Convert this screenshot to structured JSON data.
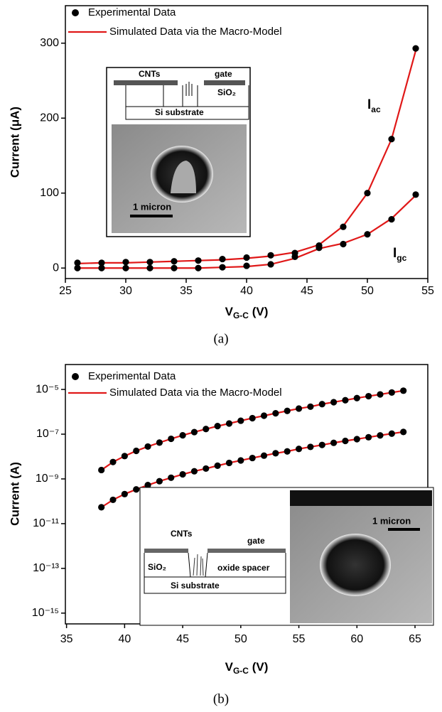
{
  "chart_data": [
    {
      "type": "scatter",
      "caption": "(a)",
      "y_label": "Current (μA)",
      "x_label": {
        "text": "V",
        "sub": "G-C",
        "unit": " (V)"
      },
      "x": [
        26,
        28,
        30,
        32,
        34,
        36,
        38,
        40,
        42,
        44,
        46,
        48,
        50,
        52,
        54
      ],
      "series": [
        {
          "name": "Experimental Data",
          "style": "markers",
          "color": "#000000",
          "values": [
            7,
            7,
            8,
            8,
            9,
            10,
            12,
            14,
            17,
            20,
            30,
            55,
            100,
            172,
            293
          ]
        },
        {
          "name": "Simulated Data via the Macro-Model",
          "style": "line",
          "color": "#e01818",
          "values": [
            6,
            7,
            7,
            8,
            9,
            10,
            11,
            13,
            16,
            21,
            31,
            56,
            100,
            172,
            290
          ]
        },
        {
          "style": "markers",
          "color": "#000000",
          "values": [
            0,
            0,
            0,
            0,
            0,
            0,
            1,
            3,
            5,
            15,
            27,
            32,
            45,
            65,
            98
          ]
        },
        {
          "style": "line",
          "color": "#e01818",
          "values": [
            0,
            0,
            0,
            0,
            0,
            0,
            1,
            2,
            5,
            13,
            26,
            33,
            45,
            66,
            97
          ]
        }
      ],
      "curve_labels": [
        {
          "text": "I",
          "sub": "ac"
        },
        {
          "text": "I",
          "sub": "gc"
        }
      ],
      "xlim": [
        25,
        55
      ],
      "xticks": [
        25,
        30,
        35,
        40,
        45,
        50,
        55
      ],
      "ylim": [
        -14,
        350
      ],
      "yticks": [
        0,
        100,
        200,
        300
      ],
      "legend": "upper left",
      "inset": {
        "cnts": "CNTs",
        "gate": "gate",
        "oxide": "SiO₂",
        "substrate": "Si substrate",
        "scale_bar": "1 micron"
      }
    },
    {
      "type": "scatter",
      "caption": "(b)",
      "y_label": "Current (A)",
      "x_label": {
        "text": "V",
        "sub": "G-C",
        "unit": " (V)"
      },
      "x": [
        38,
        39,
        40,
        41,
        42,
        43,
        44,
        45,
        46,
        47,
        48,
        49,
        50,
        51,
        52,
        53,
        54,
        55,
        56,
        57,
        58,
        59,
        60,
        61,
        62,
        63,
        64
      ],
      "series": [
        {
          "name": "Experimental Data",
          "style": "markers",
          "color": "#000000",
          "values": [
            2.5e-09,
            5.7e-09,
            1.05e-08,
            1.8e-08,
            2.8e-08,
            4.2e-08,
            6.2e-08,
            8.9e-08,
            1.24e-07,
            1.7e-07,
            2.3e-07,
            3e-07,
            4e-07,
            5.2e-07,
            6.7e-07,
            8.6e-07,
            1.1e-06,
            1.4e-06,
            1.7e-06,
            2.2e-06,
            2.7e-06,
            3.3e-06,
            4.1e-06,
            5e-06,
            6e-06,
            7.3e-06,
            8.8e-06
          ]
        },
        {
          "name": "Simulated Data via the Macro-Model",
          "style": "line",
          "color": "#e01818",
          "values": [
            2.5e-09,
            5.7e-09,
            1.05e-08,
            1.8e-08,
            2.8e-08,
            4.2e-08,
            6.2e-08,
            8.9e-08,
            1.24e-07,
            1.7e-07,
            2.3e-07,
            3e-07,
            4e-07,
            5.2e-07,
            6.7e-07,
            8.6e-07,
            1.1e-06,
            1.4e-06,
            1.7e-06,
            2.2e-06,
            2.7e-06,
            3.3e-06,
            4.1e-06,
            5e-06,
            6e-06,
            7.3e-06,
            8.8e-06
          ]
        },
        {
          "style": "markers",
          "color": "#000000",
          "values": [
            5.4e-11,
            1.16e-10,
            2.1e-10,
            3.4e-10,
            5.3e-10,
            7.9e-10,
            1.13e-09,
            1.6e-09,
            2.2e-09,
            2.9e-09,
            3.9e-09,
            5.2e-09,
            6.7e-09,
            8.6e-09,
            1.1e-08,
            1.4e-08,
            1.7e-08,
            2.2e-08,
            2.7e-08,
            3.3e-08,
            4.1e-08,
            5e-08,
            6e-08,
            7.3e-08,
            8.8e-08,
            1.06e-07,
            1.26e-07
          ]
        },
        {
          "style": "line",
          "color": "#e01818",
          "values": [
            5.4e-11,
            1.16e-10,
            2.1e-10,
            3.4e-10,
            5.3e-10,
            7.9e-10,
            1.13e-09,
            1.6e-09,
            2.2e-09,
            2.9e-09,
            3.9e-09,
            5.2e-09,
            6.7e-09,
            8.6e-09,
            1.1e-08,
            1.4e-08,
            1.7e-08,
            2.2e-08,
            2.7e-08,
            3.3e-08,
            4.1e-08,
            5e-08,
            6e-08,
            7.3e-08,
            8.8e-08,
            1.06e-07,
            1.26e-07
          ]
        }
      ],
      "xlim": [
        34.9,
        66.1
      ],
      "xticks": [
        35,
        40,
        45,
        50,
        55,
        60,
        65
      ],
      "yscale": "log",
      "ylim": [
        3.3e-16,
        0.00013
      ],
      "yticks": [
        {
          "value": 1e-15,
          "label": "10⁻¹⁵"
        },
        {
          "value": 1e-13,
          "label": "10⁻¹³"
        },
        {
          "value": 1e-11,
          "label": "10⁻¹¹"
        },
        {
          "value": 1e-09,
          "label": "10⁻⁹"
        },
        {
          "value": 1e-07,
          "label": "10⁻⁷"
        },
        {
          "value": 1e-05,
          "label": "10⁻⁵"
        }
      ],
      "legend": "upper left",
      "inset": {
        "cnts": "CNTs",
        "gate": "gate",
        "oxide": "SiO₂",
        "spacer": "oxide spacer",
        "substrate": "Si substrate",
        "scale_bar": "1 micron"
      }
    }
  ]
}
